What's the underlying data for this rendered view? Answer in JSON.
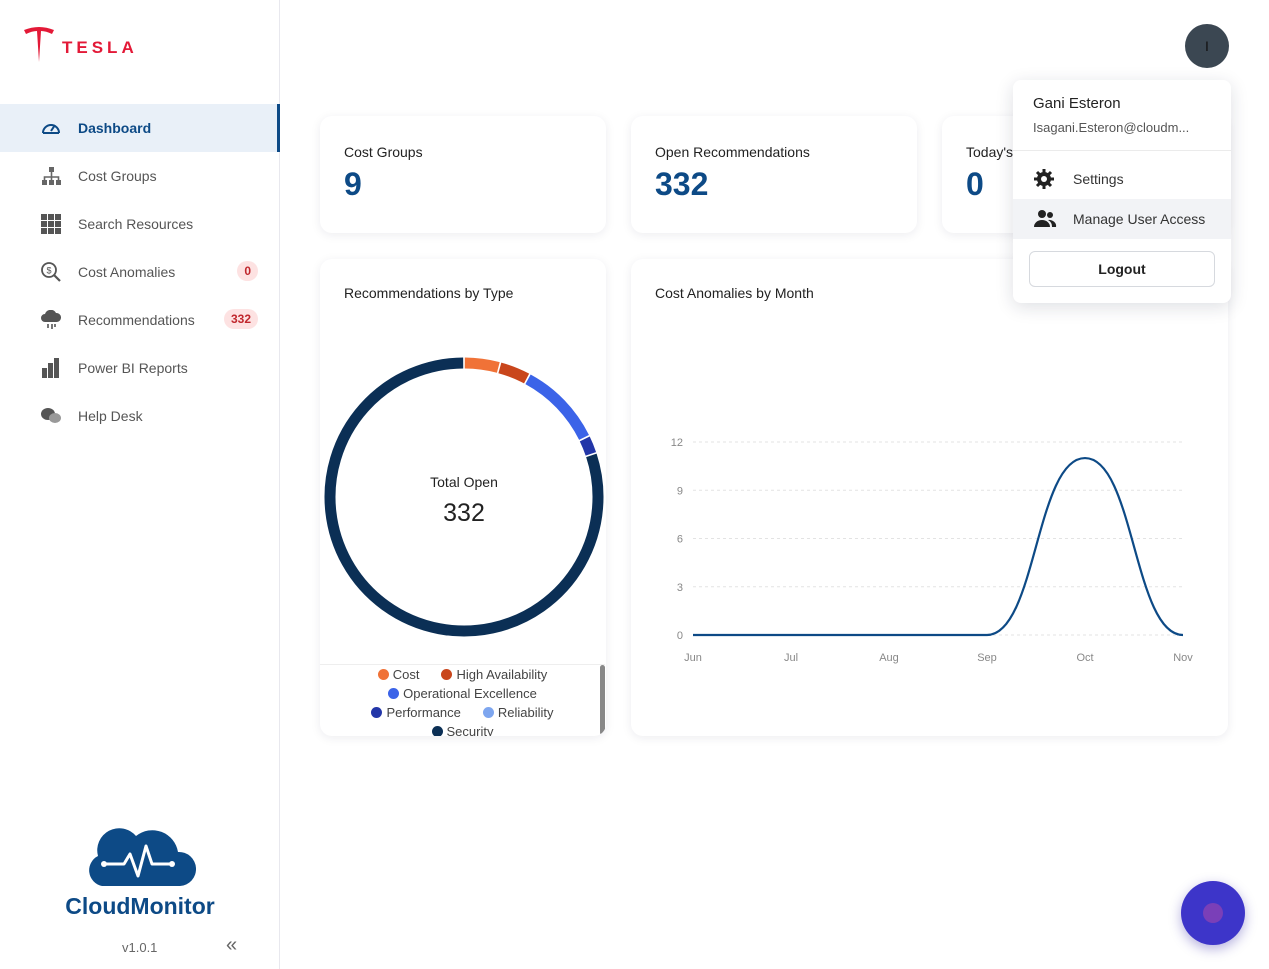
{
  "brand": {
    "name": "TESLA",
    "color": "#e31937"
  },
  "sidebar": {
    "items": [
      {
        "label": "Dashboard",
        "icon": "gauge-icon",
        "active": true
      },
      {
        "label": "Cost Groups",
        "icon": "hierarchy-icon"
      },
      {
        "label": "Search Resources",
        "icon": "grid-icon"
      },
      {
        "label": "Cost Anomalies",
        "icon": "dollar-search-icon",
        "badge": "0"
      },
      {
        "label": "Recommendations",
        "icon": "cloud-rain-icon",
        "badge": "332"
      },
      {
        "label": "Power BI Reports",
        "icon": "bar-steps-icon"
      },
      {
        "label": "Help Desk",
        "icon": "chat-bubbles-icon"
      }
    ],
    "product": "CloudMonitor",
    "version": "v1.0.1",
    "collapse_glyph": "«"
  },
  "stats": [
    {
      "title": "Cost Groups",
      "value": "9"
    },
    {
      "title": "Open Recommendations",
      "value": "332"
    },
    {
      "title": "Today's",
      "value": "0"
    }
  ],
  "donut": {
    "title": "Recommendations by Type",
    "center_label": "Total Open",
    "center_value": "332"
  },
  "line": {
    "title": "Cost Anomalies by Month"
  },
  "user_menu": {
    "avatar_initial": "I",
    "name": "Gani Esteron",
    "email": "Isagani.Esteron@cloudm...",
    "settings": "Settings",
    "manage": "Manage User Access",
    "logout": "Logout"
  },
  "colors": {
    "primary": "#0d4a86",
    "navy": "#0b2f55",
    "fab": "#3d35c9"
  },
  "chart_data": [
    {
      "type": "pie",
      "title": "Recommendations by Type",
      "categories": [
        "Cost",
        "High Availability",
        "Operational Excellence",
        "Performance",
        "Reliability",
        "Security"
      ],
      "values": [
        14,
        12,
        33,
        7,
        0,
        266
      ],
      "colors": [
        "#f07237",
        "#c9461c",
        "#3b63e8",
        "#2336a8",
        "#7ea6ef",
        "#0b2f55"
      ]
    },
    {
      "type": "line",
      "title": "Cost Anomalies by Month",
      "categories": [
        "Jun",
        "Jul",
        "Aug",
        "Sep",
        "Oct",
        "Nov"
      ],
      "values": [
        0,
        0,
        0,
        0,
        11,
        0
      ],
      "ylim": [
        0,
        12
      ],
      "yticks": [
        "0",
        "3",
        "6",
        "9",
        "12"
      ],
      "grid": true
    }
  ]
}
